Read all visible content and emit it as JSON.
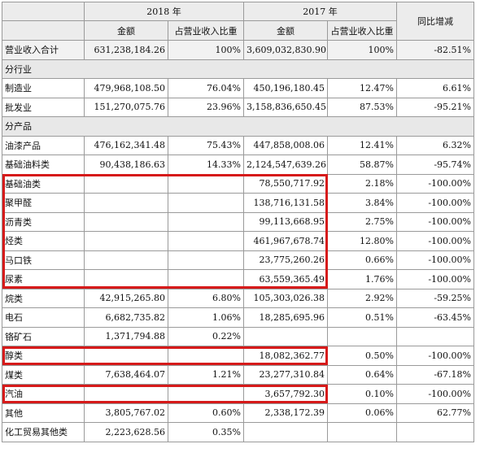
{
  "header": {
    "year_2018": "2018 年",
    "year_2017": "2017 年",
    "yoy": "同比增减",
    "amount": "金额",
    "share": "占营业收入比重"
  },
  "rows": [
    {
      "type": "total",
      "label": "营业收入合计",
      "a2018": "631,238,184.26",
      "s2018": "100%",
      "a2017": "3,609,032,830.90",
      "s2017": "100%",
      "yoy": "-82.51%"
    },
    {
      "type": "section",
      "label": "分行业"
    },
    {
      "type": "data",
      "label": "制造业",
      "a2018": "479,968,108.50",
      "s2018": "76.04%",
      "a2017": "450,196,180.45",
      "s2017": "12.47%",
      "yoy": "6.61%"
    },
    {
      "type": "data",
      "label": "批发业",
      "a2018": "151,270,075.76",
      "s2018": "23.96%",
      "a2017": "3,158,836,650.45",
      "s2017": "87.53%",
      "yoy": "-95.21%"
    },
    {
      "type": "section",
      "label": "分产品"
    },
    {
      "type": "data",
      "label": "油漆产品",
      "a2018": "476,162,341.48",
      "s2018": "75.43%",
      "a2017": "447,858,008.06",
      "s2017": "12.41%",
      "yoy": "6.32%"
    },
    {
      "type": "data",
      "label": "基础油料类",
      "a2018": "90,438,186.63",
      "s2018": "14.33%",
      "a2017": "2,124,547,639.26",
      "s2017": "58.87%",
      "yoy": "-95.74%"
    },
    {
      "type": "data",
      "label": "基础油类",
      "a2018": "",
      "s2018": "",
      "a2017": "78,550,717.92",
      "s2017": "2.18%",
      "yoy": "-100.00%"
    },
    {
      "type": "data",
      "label": "聚甲醛",
      "a2018": "",
      "s2018": "",
      "a2017": "138,716,131.58",
      "s2017": "3.84%",
      "yoy": "-100.00%"
    },
    {
      "type": "data",
      "label": "沥青类",
      "a2018": "",
      "s2018": "",
      "a2017": "99,113,668.95",
      "s2017": "2.75%",
      "yoy": "-100.00%"
    },
    {
      "type": "data",
      "label": "烃类",
      "a2018": "",
      "s2018": "",
      "a2017": "461,967,678.74",
      "s2017": "12.80%",
      "yoy": "-100.00%"
    },
    {
      "type": "data",
      "label": "马口铁",
      "a2018": "",
      "s2018": "",
      "a2017": "23,775,260.26",
      "s2017": "0.66%",
      "yoy": "-100.00%"
    },
    {
      "type": "data",
      "label": "尿素",
      "a2018": "",
      "s2018": "",
      "a2017": "63,559,365.49",
      "s2017": "1.76%",
      "yoy": "-100.00%"
    },
    {
      "type": "data",
      "label": "烷类",
      "a2018": "42,915,265.80",
      "s2018": "6.80%",
      "a2017": "105,303,026.38",
      "s2017": "2.92%",
      "yoy": "-59.25%"
    },
    {
      "type": "data",
      "label": "电石",
      "a2018": "6,682,735.82",
      "s2018": "1.06%",
      "a2017": "18,285,695.96",
      "s2017": "0.51%",
      "yoy": "-63.45%"
    },
    {
      "type": "data",
      "label": "铬矿石",
      "a2018": "1,371,794.88",
      "s2018": "0.22%",
      "a2017": "",
      "s2017": "",
      "yoy": ""
    },
    {
      "type": "data",
      "label": "醇类",
      "a2018": "",
      "s2018": "",
      "a2017": "18,082,362.77",
      "s2017": "0.50%",
      "yoy": "-100.00%"
    },
    {
      "type": "data",
      "label": "煤类",
      "a2018": "7,638,464.07",
      "s2018": "1.21%",
      "a2017": "23,277,310.84",
      "s2017": "0.64%",
      "yoy": "-67.18%"
    },
    {
      "type": "data",
      "label": "汽油",
      "a2018": "",
      "s2018": "",
      "a2017": "3,657,792.30",
      "s2017": "0.10%",
      "yoy": "-100.00%"
    },
    {
      "type": "data",
      "label": "其他",
      "a2018": "3,805,767.02",
      "s2018": "0.60%",
      "a2017": "2,338,172.39",
      "s2017": "0.06%",
      "yoy": "62.77%"
    },
    {
      "type": "data",
      "label": "化工贸易其他类",
      "a2018": "2,223,628.56",
      "s2018": "0.35%",
      "a2017": "",
      "s2017": "",
      "yoy": ""
    }
  ],
  "highlight_color": "#d61a1a"
}
